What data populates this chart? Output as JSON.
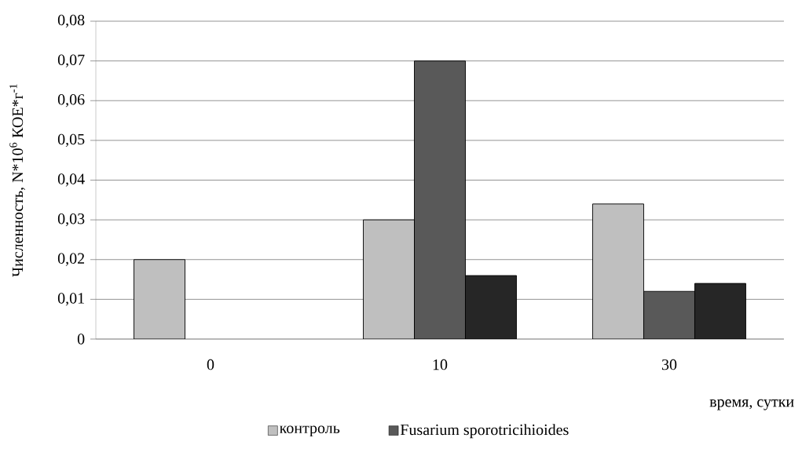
{
  "chart_data": {
    "type": "bar",
    "xlabel": "время, сутки",
    "ylabel": "Численность, N*10$^{6}$ КОЕ*г$^{-1}$",
    "categories": [
      "0",
      "10",
      "30"
    ],
    "series": [
      {
        "name": "контроль",
        "color": "#bfbfbf",
        "values": [
          0.02,
          0.03,
          0.034
        ]
      },
      {
        "name": "Fusarium sporotricihioides",
        "color": "#595959",
        "values": [
          null,
          0.07,
          0.012
        ]
      },
      {
        "color": "#262626",
        "values": [
          null,
          0.016,
          0.014
        ]
      }
    ],
    "ylim": [
      0,
      0.08
    ],
    "yticks": [
      0,
      {
        "value": 0.01,
        "label": "0,01"
      },
      {
        "value": 0.02,
        "label": "0,02"
      },
      {
        "value": 0.03,
        "label": "0,03"
      },
      {
        "value": 0.04,
        "label": "0,04"
      },
      {
        "value": 0.05,
        "label": "0,05"
      },
      {
        "value": 0.06,
        "label": "0,06"
      },
      {
        "value": 0.07,
        "label": "0,07"
      },
      {
        "value": 0.08,
        "label": "0,08"
      }
    ],
    "grid": "y",
    "legend": "bottom"
  }
}
